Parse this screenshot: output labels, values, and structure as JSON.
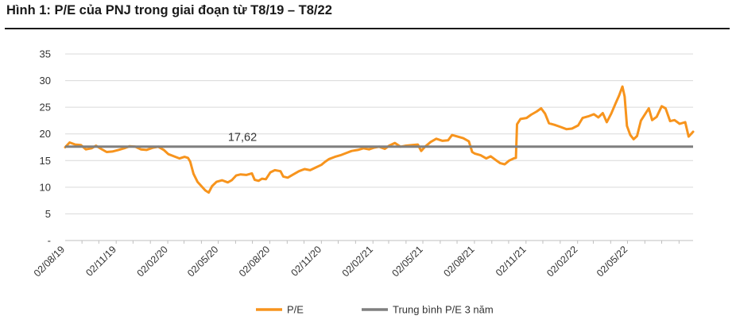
{
  "title": "Hình 1: P/E của PNJ trong giai đoạn từ T8/19 – T8/22",
  "colors": {
    "pe_line": "#F7941D",
    "avg_line": "#7F7F7F",
    "grid": "#D9D9D9",
    "axis": "#BFBFBF",
    "title_rule": "#1A1A1A"
  },
  "chart_data": {
    "type": "line",
    "title": "Hình 1: P/E của PNJ trong giai đoạn từ T8/19 – T8/22",
    "xlabel": "",
    "ylabel": "",
    "ylim": [
      0,
      35
    ],
    "y_ticks": [
      {
        "value": 0,
        "label": "-"
      },
      {
        "value": 5,
        "label": "5"
      },
      {
        "value": 10,
        "label": "10"
      },
      {
        "value": 15,
        "label": "15"
      },
      {
        "value": 20,
        "label": "20"
      },
      {
        "value": 25,
        "label": "25"
      },
      {
        "value": 30,
        "label": "30"
      },
      {
        "value": 35,
        "label": "35"
      }
    ],
    "xlim": [
      "2019-08-02",
      "2022-08-26"
    ],
    "x_ticks": [
      {
        "date": "2019-08-02",
        "label": "02/08/19"
      },
      {
        "date": "2019-11-02",
        "label": "02/11/19"
      },
      {
        "date": "2020-02-02",
        "label": "02/02/20"
      },
      {
        "date": "2020-05-02",
        "label": "02/05/20"
      },
      {
        "date": "2020-08-02",
        "label": "02/08/20"
      },
      {
        "date": "2020-11-02",
        "label": "02/11/20"
      },
      {
        "date": "2021-02-02",
        "label": "02/02/21"
      },
      {
        "date": "2021-05-02",
        "label": "02/05/21"
      },
      {
        "date": "2021-08-02",
        "label": "02/08/21"
      },
      {
        "date": "2021-11-02",
        "label": "02/11/21"
      },
      {
        "date": "2022-02-02",
        "label": "02/02/22"
      },
      {
        "date": "2022-05-02",
        "label": "02/05/22"
      }
    ],
    "grid": "horizontal",
    "legend_position": "bottom",
    "series": [
      {
        "name": "P/E",
        "color": "#F7941D",
        "points": [
          [
            "2019-08-02",
            17.5
          ],
          [
            "2019-08-10",
            18.4
          ],
          [
            "2019-08-20",
            18.0
          ],
          [
            "2019-08-30",
            17.9
          ],
          [
            "2019-09-08",
            17.1
          ],
          [
            "2019-09-18",
            17.3
          ],
          [
            "2019-09-26",
            17.8
          ],
          [
            "2019-10-05",
            17.2
          ],
          [
            "2019-10-15",
            16.6
          ],
          [
            "2019-10-25",
            16.7
          ],
          [
            "2019-11-05",
            17.0
          ],
          [
            "2019-11-15",
            17.3
          ],
          [
            "2019-11-25",
            17.7
          ],
          [
            "2019-12-05",
            17.6
          ],
          [
            "2019-12-15",
            17.1
          ],
          [
            "2019-12-25",
            17.0
          ],
          [
            "2020-01-05",
            17.4
          ],
          [
            "2020-01-15",
            17.6
          ],
          [
            "2020-01-25",
            17.0
          ],
          [
            "2020-02-02",
            16.2
          ],
          [
            "2020-02-12",
            15.8
          ],
          [
            "2020-02-22",
            15.4
          ],
          [
            "2020-03-02",
            15.7
          ],
          [
            "2020-03-08",
            15.5
          ],
          [
            "2020-03-12",
            14.8
          ],
          [
            "2020-03-18",
            12.5
          ],
          [
            "2020-03-25",
            11.0
          ],
          [
            "2020-04-01",
            10.2
          ],
          [
            "2020-04-08",
            9.4
          ],
          [
            "2020-04-14",
            9.0
          ],
          [
            "2020-04-20",
            10.2
          ],
          [
            "2020-04-28",
            11.0
          ],
          [
            "2020-05-08",
            11.3
          ],
          [
            "2020-05-18",
            10.9
          ],
          [
            "2020-05-25",
            11.3
          ],
          [
            "2020-06-02",
            12.2
          ],
          [
            "2020-06-10",
            12.4
          ],
          [
            "2020-06-20",
            12.3
          ],
          [
            "2020-06-30",
            12.6
          ],
          [
            "2020-07-05",
            11.4
          ],
          [
            "2020-07-12",
            11.2
          ],
          [
            "2020-07-18",
            11.6
          ],
          [
            "2020-07-25",
            11.5
          ],
          [
            "2020-08-02",
            12.8
          ],
          [
            "2020-08-10",
            13.2
          ],
          [
            "2020-08-20",
            13.0
          ],
          [
            "2020-08-25",
            12.0
          ],
          [
            "2020-09-02",
            11.8
          ],
          [
            "2020-09-12",
            12.4
          ],
          [
            "2020-09-22",
            13.0
          ],
          [
            "2020-10-02",
            13.4
          ],
          [
            "2020-10-12",
            13.2
          ],
          [
            "2020-10-22",
            13.7
          ],
          [
            "2020-11-01",
            14.2
          ],
          [
            "2020-11-08",
            14.8
          ],
          [
            "2020-11-15",
            15.3
          ],
          [
            "2020-11-25",
            15.7
          ],
          [
            "2020-12-05",
            16.0
          ],
          [
            "2020-12-15",
            16.4
          ],
          [
            "2020-12-25",
            16.8
          ],
          [
            "2021-01-05",
            17.0
          ],
          [
            "2021-01-15",
            17.3
          ],
          [
            "2021-01-25",
            17.1
          ],
          [
            "2021-02-02",
            17.4
          ],
          [
            "2021-02-12",
            17.6
          ],
          [
            "2021-02-22",
            17.2
          ],
          [
            "2021-03-02",
            17.8
          ],
          [
            "2021-03-12",
            18.3
          ],
          [
            "2021-03-22",
            17.6
          ],
          [
            "2021-04-01",
            17.8
          ],
          [
            "2021-04-12",
            17.9
          ],
          [
            "2021-04-22",
            18.0
          ],
          [
            "2021-04-28",
            16.8
          ],
          [
            "2021-05-05",
            17.6
          ],
          [
            "2021-05-15",
            18.5
          ],
          [
            "2021-05-25",
            19.1
          ],
          [
            "2021-06-05",
            18.7
          ],
          [
            "2021-06-15",
            18.8
          ],
          [
            "2021-06-22",
            19.8
          ],
          [
            "2021-07-02",
            19.5
          ],
          [
            "2021-07-12",
            19.2
          ],
          [
            "2021-07-22",
            18.6
          ],
          [
            "2021-07-28",
            16.6
          ],
          [
            "2021-08-02",
            16.3
          ],
          [
            "2021-08-12",
            16.0
          ],
          [
            "2021-08-22",
            15.4
          ],
          [
            "2021-08-30",
            15.8
          ],
          [
            "2021-09-08",
            15.1
          ],
          [
            "2021-09-16",
            14.5
          ],
          [
            "2021-09-24",
            14.3
          ],
          [
            "2021-10-02",
            15.0
          ],
          [
            "2021-10-10",
            15.4
          ],
          [
            "2021-10-14",
            15.5
          ],
          [
            "2021-10-16",
            21.8
          ],
          [
            "2021-10-22",
            22.8
          ],
          [
            "2021-11-02",
            23.0
          ],
          [
            "2021-11-10",
            23.6
          ],
          [
            "2021-11-20",
            24.2
          ],
          [
            "2021-11-28",
            24.8
          ],
          [
            "2021-12-05",
            23.8
          ],
          [
            "2021-12-12",
            22.0
          ],
          [
            "2021-12-22",
            21.7
          ],
          [
            "2022-01-02",
            21.3
          ],
          [
            "2022-01-12",
            20.9
          ],
          [
            "2022-01-22",
            21.0
          ],
          [
            "2022-02-02",
            21.6
          ],
          [
            "2022-02-10",
            23.0
          ],
          [
            "2022-02-20",
            23.3
          ],
          [
            "2022-03-02",
            23.7
          ],
          [
            "2022-03-10",
            23.1
          ],
          [
            "2022-03-18",
            23.9
          ],
          [
            "2022-03-25",
            22.2
          ],
          [
            "2022-04-02",
            23.8
          ],
          [
            "2022-04-10",
            25.8
          ],
          [
            "2022-04-16",
            27.2
          ],
          [
            "2022-04-22",
            28.9
          ],
          [
            "2022-04-26",
            27.0
          ],
          [
            "2022-04-30",
            21.5
          ],
          [
            "2022-05-06",
            19.8
          ],
          [
            "2022-05-12",
            19.0
          ],
          [
            "2022-05-18",
            19.6
          ],
          [
            "2022-05-25",
            22.5
          ],
          [
            "2022-06-02",
            23.8
          ],
          [
            "2022-06-08",
            24.8
          ],
          [
            "2022-06-14",
            22.6
          ],
          [
            "2022-06-22",
            23.2
          ],
          [
            "2022-07-01",
            25.2
          ],
          [
            "2022-07-08",
            24.8
          ],
          [
            "2022-07-16",
            22.4
          ],
          [
            "2022-07-24",
            22.6
          ],
          [
            "2022-08-02",
            21.9
          ],
          [
            "2022-08-12",
            22.2
          ],
          [
            "2022-08-18",
            19.5
          ],
          [
            "2022-08-26",
            20.4
          ]
        ]
      },
      {
        "name": "Trung bình P/E 3 năm",
        "color": "#7F7F7F",
        "constant": 17.62,
        "label": "17,62"
      }
    ]
  }
}
